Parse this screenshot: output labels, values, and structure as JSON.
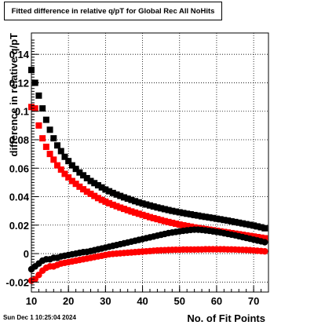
{
  "title": "Fitted difference in relative q/pT for Global Rec All NoHits",
  "footer": "Sun Dec  1 10:25:04 2024",
  "chart_data": {
    "type": "scatter",
    "title": "Fitted difference in relative q/pT for Global Rec All NoHits",
    "xlabel": "No. of Fit Points",
    "ylabel": "difference in relative q/pT",
    "xlim": [
      10,
      74
    ],
    "ylim": [
      -0.027,
      0.155
    ],
    "xticks": [
      10,
      20,
      30,
      40,
      50,
      60,
      70
    ],
    "yticks": [
      -0.02,
      0,
      0.02,
      0.04,
      0.06,
      0.08,
      0.1,
      0.12,
      0.14
    ],
    "ytick_labels": [
      "-0.02",
      "0",
      "0.02",
      "0.04",
      "0.06",
      "0.08",
      "0.1",
      "0.12",
      "0.14"
    ],
    "grid": true,
    "series": [
      {
        "marker": "square",
        "color": "#000000",
        "x": [
          10,
          11,
          12,
          13,
          14,
          15,
          16,
          17,
          18,
          19,
          20,
          21,
          22,
          23,
          24,
          25,
          26,
          27,
          28,
          29,
          30,
          31,
          32,
          33,
          34,
          35,
          36,
          37,
          38,
          39,
          40,
          41,
          42,
          43,
          44,
          45,
          46,
          47,
          48,
          49,
          50,
          51,
          52,
          53,
          54,
          55,
          56,
          57,
          58,
          59,
          60,
          61,
          62,
          63,
          64,
          65,
          66,
          67,
          68,
          69,
          70,
          71,
          72,
          73
        ],
        "y": [
          0.129,
          0.12,
          0.111,
          0.102,
          0.094,
          0.087,
          0.081,
          0.076,
          0.072,
          0.068,
          0.065,
          0.062,
          0.0595,
          0.057,
          0.055,
          0.053,
          0.051,
          0.0495,
          0.048,
          0.0465,
          0.045,
          0.0438,
          0.0426,
          0.0415,
          0.0405,
          0.0395,
          0.0386,
          0.0377,
          0.0368,
          0.036,
          0.0352,
          0.0345,
          0.0338,
          0.0331,
          0.0324,
          0.0318,
          0.0312,
          0.0306,
          0.03,
          0.0295,
          0.029,
          0.0285,
          0.028,
          0.0276,
          0.0271,
          0.0267,
          0.0262,
          0.0258,
          0.0254,
          0.025,
          0.0245,
          0.0241,
          0.0236,
          0.0232,
          0.0227,
          0.0222,
          0.0217,
          0.0212,
          0.0207,
          0.0202,
          0.0197,
          0.0191,
          0.0185,
          0.0178
        ]
      },
      {
        "marker": "square",
        "color": "#ff0000",
        "x": [
          10,
          11,
          12,
          13,
          14,
          15,
          16,
          17,
          18,
          19,
          20,
          21,
          22,
          23,
          24,
          25,
          26,
          27,
          28,
          29,
          30,
          31,
          32,
          33,
          34,
          35,
          36,
          37,
          38,
          39,
          40,
          41,
          42,
          43,
          44,
          45,
          46,
          47,
          48,
          49,
          50,
          51,
          52,
          53,
          54,
          55,
          56,
          57,
          58,
          59,
          60,
          61,
          62,
          63,
          64,
          65,
          66,
          67,
          68,
          69,
          70,
          71,
          72,
          73
        ],
        "y": [
          0.103,
          0.102,
          0.09,
          0.081,
          0.075,
          0.07,
          0.066,
          0.062,
          0.059,
          0.056,
          0.0535,
          0.051,
          0.049,
          0.047,
          0.0452,
          0.0435,
          0.042,
          0.0405,
          0.039,
          0.0377,
          0.0365,
          0.0354,
          0.0343,
          0.0333,
          0.0323,
          0.0314,
          0.0305,
          0.0296,
          0.0288,
          0.028,
          0.0272,
          0.0264,
          0.0256,
          0.0249,
          0.0242,
          0.0235,
          0.0228,
          0.0222,
          0.0216,
          0.021,
          0.0204,
          0.0199,
          0.0194,
          0.0189,
          0.0184,
          0.018,
          0.0176,
          0.0172,
          0.0168,
          0.0164,
          0.016,
          0.0156,
          0.0152,
          0.0148,
          0.0144,
          0.014,
          0.0136,
          0.0132,
          0.0128,
          0.0124,
          0.012,
          0.0116,
          0.0112,
          0.0108
        ]
      },
      {
        "marker": "circle",
        "color": "#000000",
        "x": [
          10,
          11,
          12,
          13,
          14,
          15,
          16,
          17,
          18,
          19,
          20,
          21,
          22,
          23,
          24,
          25,
          26,
          27,
          28,
          29,
          30,
          31,
          32,
          33,
          34,
          35,
          36,
          37,
          38,
          39,
          40,
          41,
          42,
          43,
          44,
          45,
          46,
          47,
          48,
          49,
          50,
          51,
          52,
          53,
          54,
          55,
          56,
          57,
          58,
          59,
          60,
          61,
          62,
          63,
          64,
          65,
          66,
          67,
          68,
          69,
          70,
          71,
          72,
          73
        ],
        "y": [
          -0.011,
          -0.009,
          -0.007,
          -0.005,
          -0.004,
          -0.004,
          -0.003,
          -0.003,
          -0.002,
          -0.0015,
          -0.001,
          -0.0005,
          0,
          0.0005,
          0.001,
          0.0012,
          0.0018,
          0.0024,
          0.003,
          0.0036,
          0.0042,
          0.0048,
          0.0054,
          0.006,
          0.0066,
          0.0072,
          0.0078,
          0.0084,
          0.009,
          0.0096,
          0.0102,
          0.0108,
          0.0114,
          0.012,
          0.0126,
          0.0132,
          0.0138,
          0.0144,
          0.0148,
          0.0152,
          0.0156,
          0.016,
          0.0163,
          0.0166,
          0.0168,
          0.0168,
          0.0166,
          0.0163,
          0.016,
          0.0156,
          0.0152,
          0.0148,
          0.0143,
          0.0138,
          0.0133,
          0.0128,
          0.0122,
          0.0116,
          0.011,
          0.0104,
          0.0098,
          0.0092,
          0.0086,
          0.008
        ]
      },
      {
        "marker": "circle",
        "color": "#ff0000",
        "x": [
          10,
          11,
          12,
          13,
          14,
          15,
          16,
          17,
          18,
          19,
          20,
          21,
          22,
          23,
          24,
          25,
          26,
          27,
          28,
          29,
          30,
          31,
          32,
          33,
          34,
          35,
          36,
          37,
          38,
          39,
          40,
          41,
          42,
          43,
          44,
          45,
          46,
          47,
          48,
          49,
          50,
          51,
          52,
          53,
          54,
          55,
          56,
          57,
          58,
          59,
          60,
          61,
          62,
          63,
          64,
          65,
          66,
          67,
          68,
          69,
          70,
          71,
          72,
          73
        ],
        "y": [
          -0.019,
          -0.018,
          -0.015,
          -0.012,
          -0.01,
          -0.009,
          -0.009,
          -0.008,
          -0.007,
          -0.0065,
          -0.006,
          -0.0055,
          -0.005,
          -0.0045,
          -0.004,
          -0.0035,
          -0.003,
          -0.0025,
          -0.002,
          -0.0015,
          -0.001,
          -0.0005,
          -0.0002,
          0,
          0.0002,
          0.0004,
          0.0006,
          0.0008,
          0.001,
          0.0012,
          0.0014,
          0.0016,
          0.0018,
          0.002,
          0.0022,
          0.0023,
          0.0024,
          0.0025,
          0.0026,
          0.0027,
          0.0027,
          0.0028,
          0.0028,
          0.0028,
          0.0028,
          0.0029,
          0.0029,
          0.003,
          0.003,
          0.003,
          0.003,
          0.003,
          0.003,
          0.0029,
          0.0029,
          0.0028,
          0.0027,
          0.0026,
          0.0025,
          0.0024,
          0.0022,
          0.002,
          0.0018,
          0.0016
        ]
      }
    ]
  }
}
